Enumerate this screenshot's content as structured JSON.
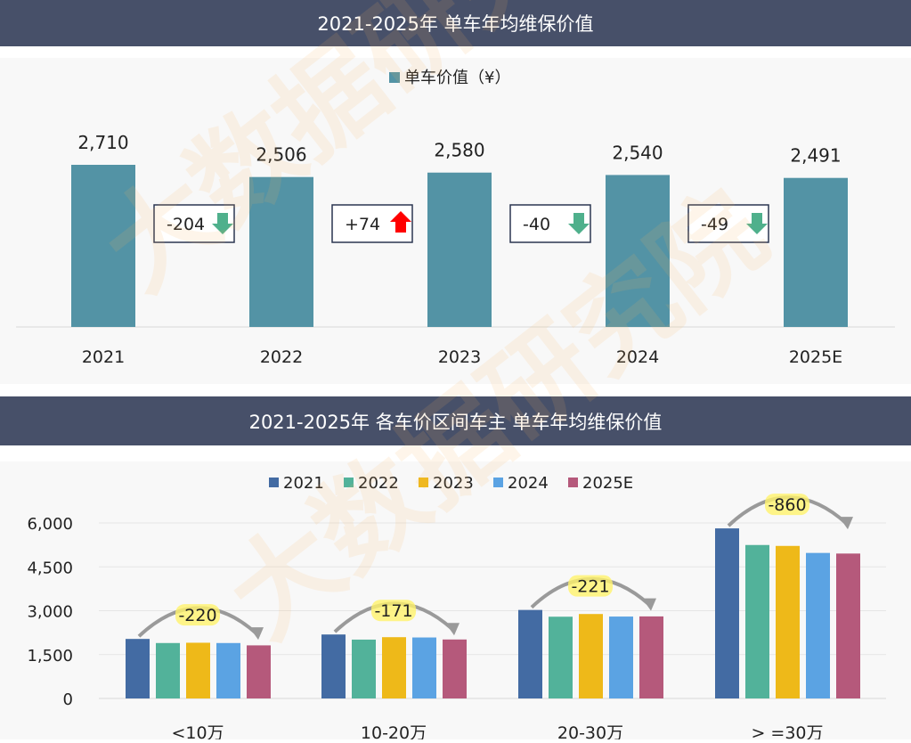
{
  "watermark": "大数据研究院",
  "chart_data": [
    {
      "type": "bar",
      "title": "2021-2025年 单车年均维保价值",
      "categories": [
        "2021",
        "2022",
        "2023",
        "2024",
        "2025E"
      ],
      "series": [
        {
          "name": "单车价值（¥）",
          "values": [
            2710,
            2506,
            2580,
            2540,
            2491
          ],
          "color": "#5393a5"
        }
      ],
      "data_labels": [
        "2,710",
        "2,506",
        "2,580",
        "2,540",
        "2,491"
      ],
      "changes": [
        {
          "label": "-204",
          "direction": "down"
        },
        {
          "label": "+74",
          "direction": "up"
        },
        {
          "label": "-40",
          "direction": "down"
        },
        {
          "label": "-49",
          "direction": "down"
        }
      ],
      "up_color": "#ff0000",
      "down_color": "#4fb08c",
      "legend_placement": "top",
      "grid": false,
      "ylim": [
        0,
        2710
      ]
    },
    {
      "type": "bar",
      "title": "2021-2025年 各车价区间车主 单车年均维保价值",
      "categories": [
        "<10万",
        "10-20万",
        "20-30万",
        "> =30万"
      ],
      "series": [
        {
          "name": "2021",
          "values": [
            2035,
            2187,
            3026,
            5814
          ],
          "color": "#436ba3"
        },
        {
          "name": "2022",
          "values": [
            1895,
            2012,
            2795,
            5246
          ],
          "color": "#52b29a"
        },
        {
          "name": "2023",
          "values": [
            1905,
            2095,
            2887,
            5215
          ],
          "color": "#eeb919"
        },
        {
          "name": "2024",
          "values": [
            1895,
            2085,
            2800,
            4975
          ],
          "color": "#5ba3e3"
        },
        {
          "name": "2025E",
          "values": [
            1815,
            2016,
            2805,
            4954
          ],
          "color": "#b5597b"
        }
      ],
      "change_labels": [
        "-220",
        "-171",
        "-221",
        "-860"
      ],
      "yticks": [
        "0",
        "1,500",
        "3,000",
        "4,500",
        "6,000"
      ],
      "ytick_values": [
        0,
        1500,
        3000,
        4500,
        6000
      ],
      "ylim": [
        0,
        6000
      ],
      "grid": true,
      "legend_placement": "top"
    }
  ]
}
